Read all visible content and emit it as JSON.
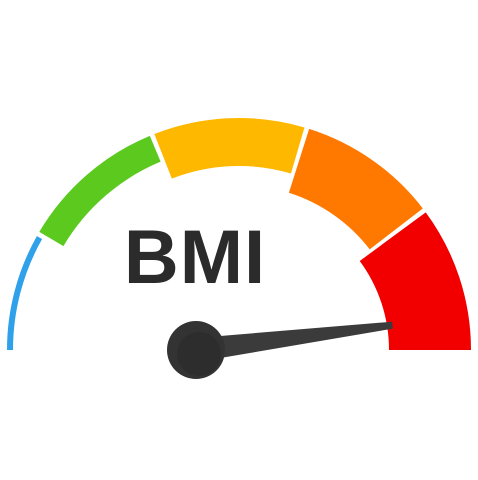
{
  "gauge": {
    "label": "BMI",
    "needle_level": 0.96,
    "segments": [
      {
        "name": "blue",
        "color": "#2fa0ea"
      },
      {
        "name": "green",
        "color": "#5cc91f"
      },
      {
        "name": "yellow",
        "color": "#ffb800"
      },
      {
        "name": "orange",
        "color": "#ff7800"
      },
      {
        "name": "red",
        "color": "#f20000"
      }
    ],
    "needle_color": "#3b3b3b",
    "hub_color": "#333333"
  }
}
